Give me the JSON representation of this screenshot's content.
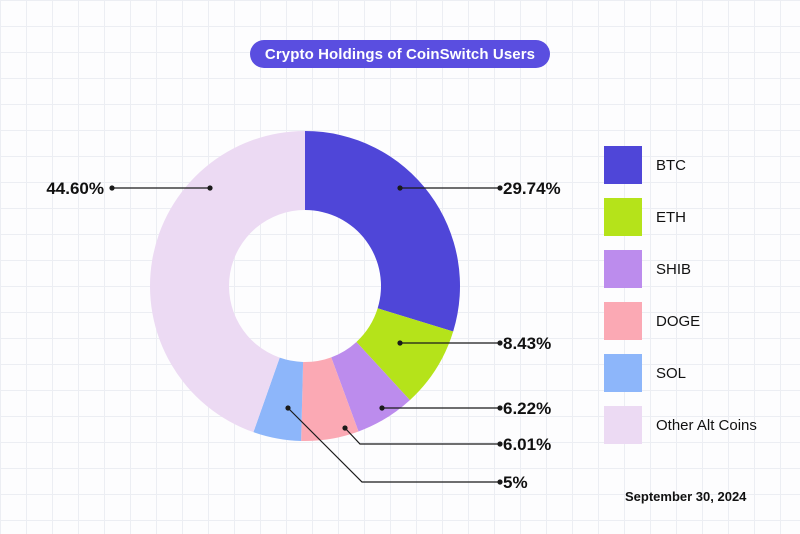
{
  "colors": {
    "BTC": "#4f46d8",
    "ETH": "#b5e31a",
    "SHIB": "#bc8ced",
    "DOGE": "#fba9b4",
    "SOL": "#8db6fa",
    "Other Alt Coins": "#ecdaf3"
  },
  "date": "September 30, 2024",
  "chart_data": {
    "type": "pie",
    "style": "donut",
    "title": "Crypto Holdings of CoinSwitch Users",
    "legend_position": "right",
    "slices": [
      {
        "label": "BTC",
        "value": 29.74,
        "display": "29.74%"
      },
      {
        "label": "ETH",
        "value": 8.43,
        "display": "8.43%"
      },
      {
        "label": "SHIB",
        "value": 6.22,
        "display": "6.22%"
      },
      {
        "label": "DOGE",
        "value": 6.01,
        "display": "6.01%"
      },
      {
        "label": "SOL",
        "value": 5,
        "display": "5%"
      },
      {
        "label": "Other Alt Coins",
        "value": 44.6,
        "display": "44.60%"
      }
    ]
  }
}
